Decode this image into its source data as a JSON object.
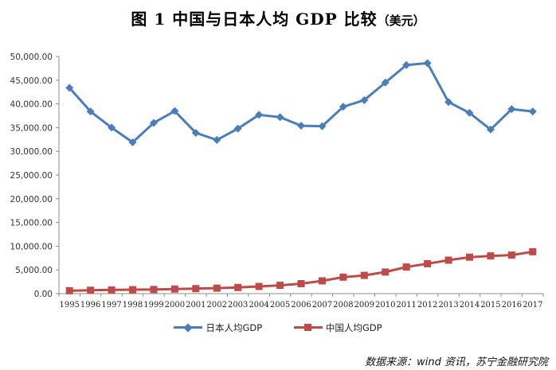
{
  "title": {
    "main": "图 1   中国与日本人均 GDP 比较",
    "unit": "（美元）"
  },
  "source": "数据来源：wind 资讯，苏宁金融研究院",
  "colors": {
    "japan": "#4a7ebb",
    "china": "#be4b48",
    "axis": "#8c8c8c"
  },
  "chart_data": {
    "type": "line",
    "title": "图 1 中国与日本人均 GDP 比较（美元）",
    "xlabel": "",
    "ylabel": "",
    "ylim": [
      0,
      50000
    ],
    "yticks": [
      0,
      5000,
      10000,
      15000,
      20000,
      25000,
      30000,
      35000,
      40000,
      45000,
      50000
    ],
    "ytick_labels": [
      "0.00",
      "5,000.00",
      "10,000.00",
      "15,000.00",
      "20,000.00",
      "25,000.00",
      "30,000.00",
      "35,000.00",
      "40,000.00",
      "45,000.00",
      "50,000.00"
    ],
    "grid": false,
    "legend_position": "bottom",
    "categories": [
      "1995",
      "1996",
      "1997",
      "1998",
      "1999",
      "2000",
      "2001",
      "2002",
      "2003",
      "2004",
      "2005",
      "2006",
      "2007",
      "2008",
      "2009",
      "2010",
      "2011",
      "2012",
      "2013",
      "2014",
      "2015",
      "2016",
      "2017"
    ],
    "series": [
      {
        "name": "日本人均GDP",
        "marker": "diamond",
        "color": "#4a7ebb",
        "values": [
          43400,
          38400,
          35000,
          31900,
          36000,
          38500,
          33900,
          32400,
          34800,
          37700,
          37200,
          35400,
          35300,
          39400,
          40800,
          44500,
          48200,
          48600,
          40400,
          38100,
          34600,
          38900,
          38400
        ]
      },
      {
        "name": "中国人均GDP",
        "marker": "square",
        "color": "#be4b48",
        "values": [
          610,
          710,
          780,
          830,
          870,
          960,
          1050,
          1150,
          1290,
          1510,
          1750,
          2100,
          2690,
          3470,
          3840,
          4550,
          5610,
          6300,
          7050,
          7680,
          7950,
          8120,
          8830
        ]
      }
    ]
  }
}
